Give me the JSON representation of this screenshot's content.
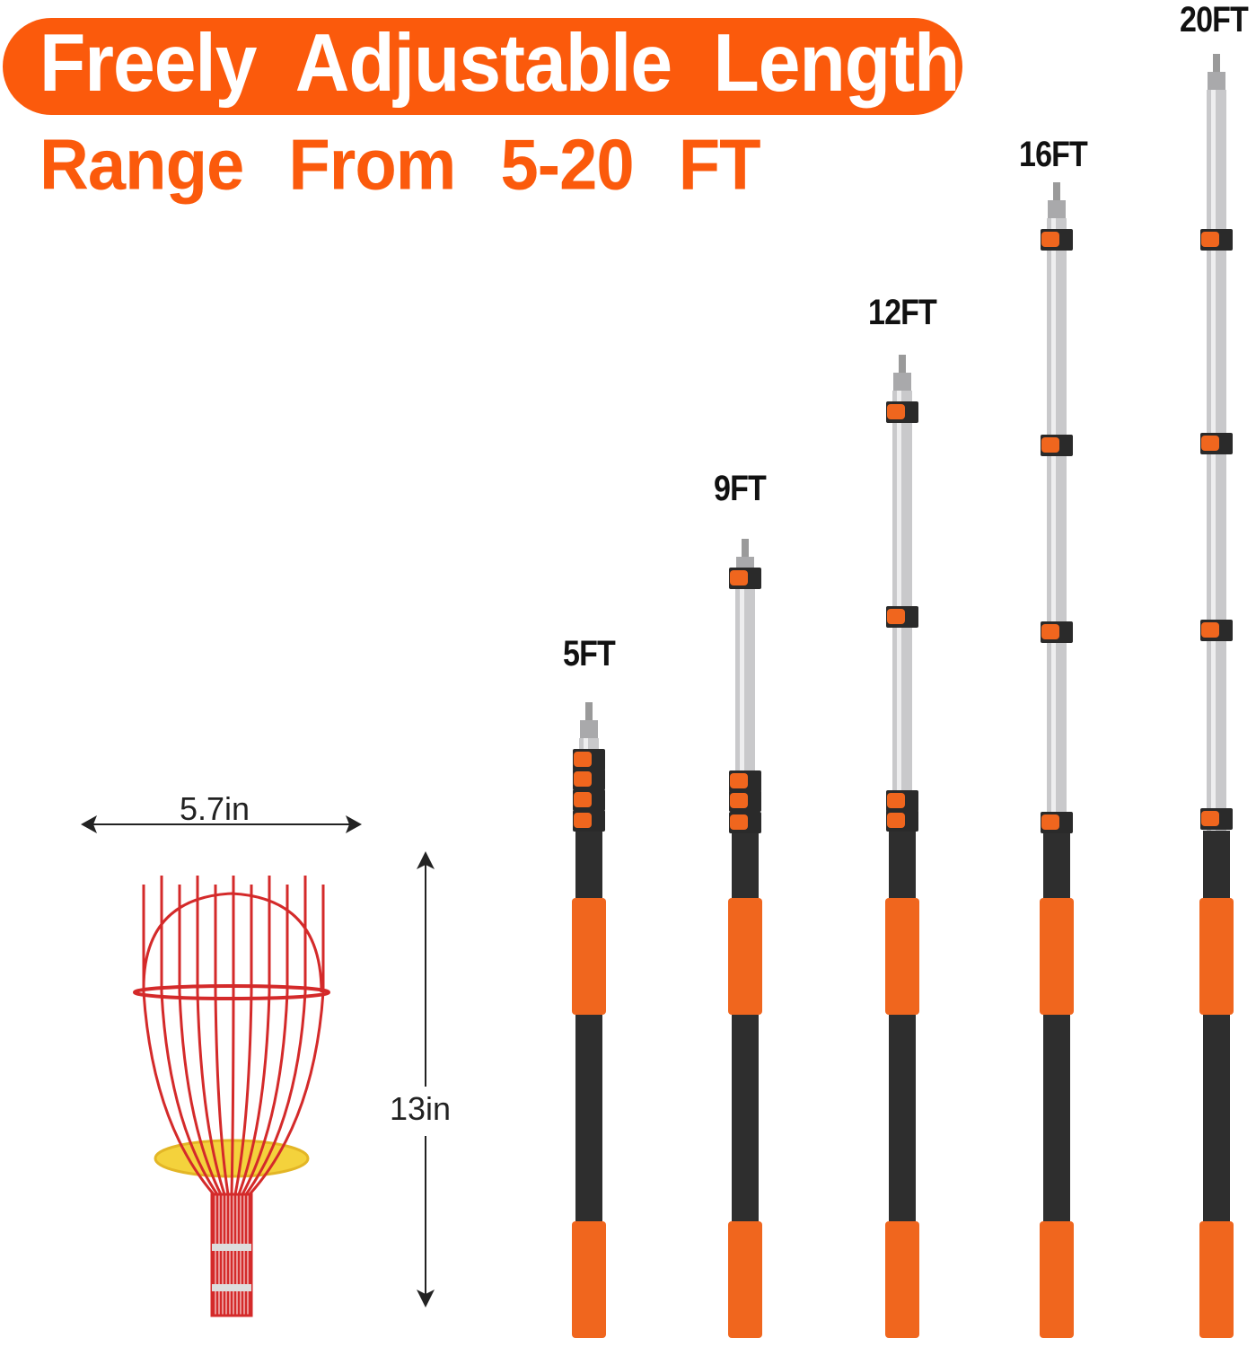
{
  "header": {
    "title": "Freely Adjustable Length",
    "subtitle": "Range From 5-20 FT"
  },
  "poles": [
    {
      "label": "5FT"
    },
    {
      "label": "9FT"
    },
    {
      "label": "12FT"
    },
    {
      "label": "16FT"
    },
    {
      "label": "20FT"
    }
  ],
  "basket": {
    "width_label": "5.7in",
    "height_label": "13in"
  },
  "colors": {
    "brand_orange": "#fb5a0c",
    "grip_orange": "#f0661e",
    "pole_black": "#2e2e2e",
    "pole_silver": "#c9c9cb",
    "basket_red": "#d42a2a",
    "basket_yellow": "#f4d23c"
  }
}
